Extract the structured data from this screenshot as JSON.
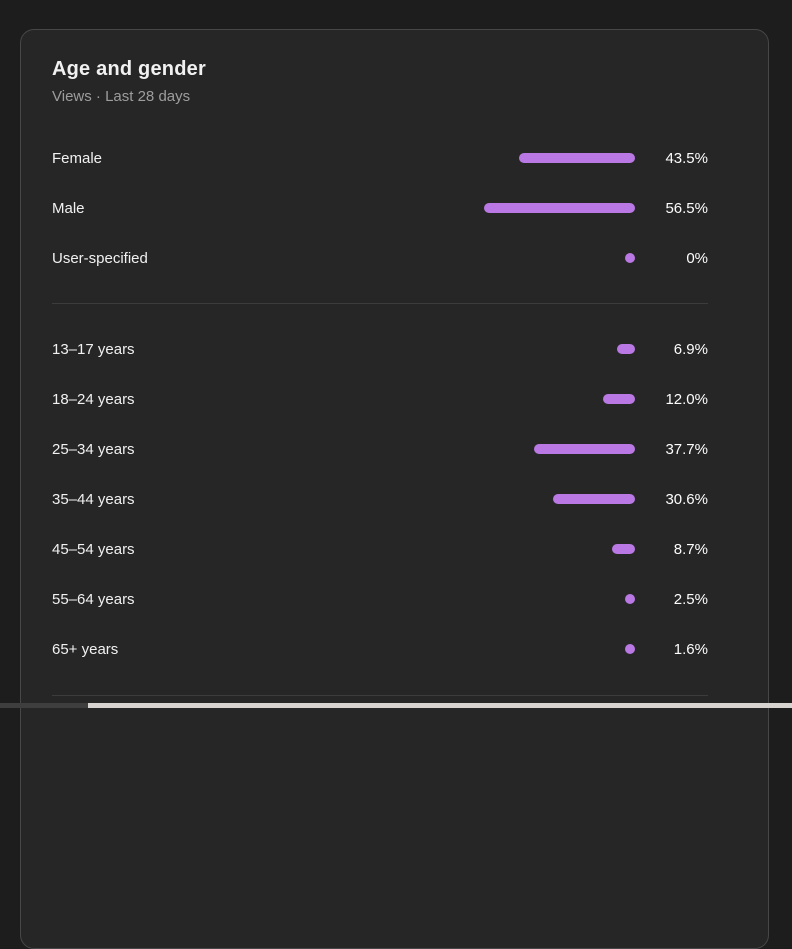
{
  "card": {
    "title": "Age and gender",
    "subtitle": "Views · Last 28 days"
  },
  "colors": {
    "bar": "#b978e3",
    "card_background": "#262626",
    "page_background": "#1d1d1d",
    "label_text": "#f1f1f1",
    "subtitle_text": "#9d9d9d",
    "divider": "#3c3c3c"
  },
  "chart_data": {
    "type": "bar",
    "orientation": "horizontal",
    "title": "Age and gender",
    "subtitle": "Views · Last 28 days",
    "metric": "Views",
    "period": "Last 28 days",
    "unit": "%",
    "xlim": [
      0,
      100
    ],
    "grid": false,
    "legend": false,
    "groups": [
      {
        "name": "gender",
        "categories": [
          "Female",
          "Male",
          "User-specified"
        ],
        "values": [
          43.5,
          56.5,
          0
        ],
        "rows": [
          {
            "label": "Female",
            "value": 43.5,
            "display": "43.5%"
          },
          {
            "label": "Male",
            "value": 56.5,
            "display": "56.5%"
          },
          {
            "label": "User-specified",
            "value": 0,
            "display": "0%"
          }
        ]
      },
      {
        "name": "age",
        "categories": [
          "13–17 years",
          "18–24 years",
          "25–34 years",
          "35–44 years",
          "45–54 years",
          "55–64 years",
          "65+ years"
        ],
        "values": [
          6.9,
          12.0,
          37.7,
          30.6,
          8.7,
          2.5,
          1.6
        ],
        "rows": [
          {
            "label": "13–17 years",
            "value": 6.9,
            "display": "6.9%"
          },
          {
            "label": "18–24 years",
            "value": 12.0,
            "display": "12.0%"
          },
          {
            "label": "25–34 years",
            "value": 37.7,
            "display": "37.7%"
          },
          {
            "label": "35–44 years",
            "value": 30.6,
            "display": "30.6%"
          },
          {
            "label": "45–54 years",
            "value": 8.7,
            "display": "8.7%"
          },
          {
            "label": "55–64 years",
            "value": 2.5,
            "display": "2.5%"
          },
          {
            "label": "65+ years",
            "value": 1.6,
            "display": "1.6%"
          }
        ]
      }
    ]
  }
}
